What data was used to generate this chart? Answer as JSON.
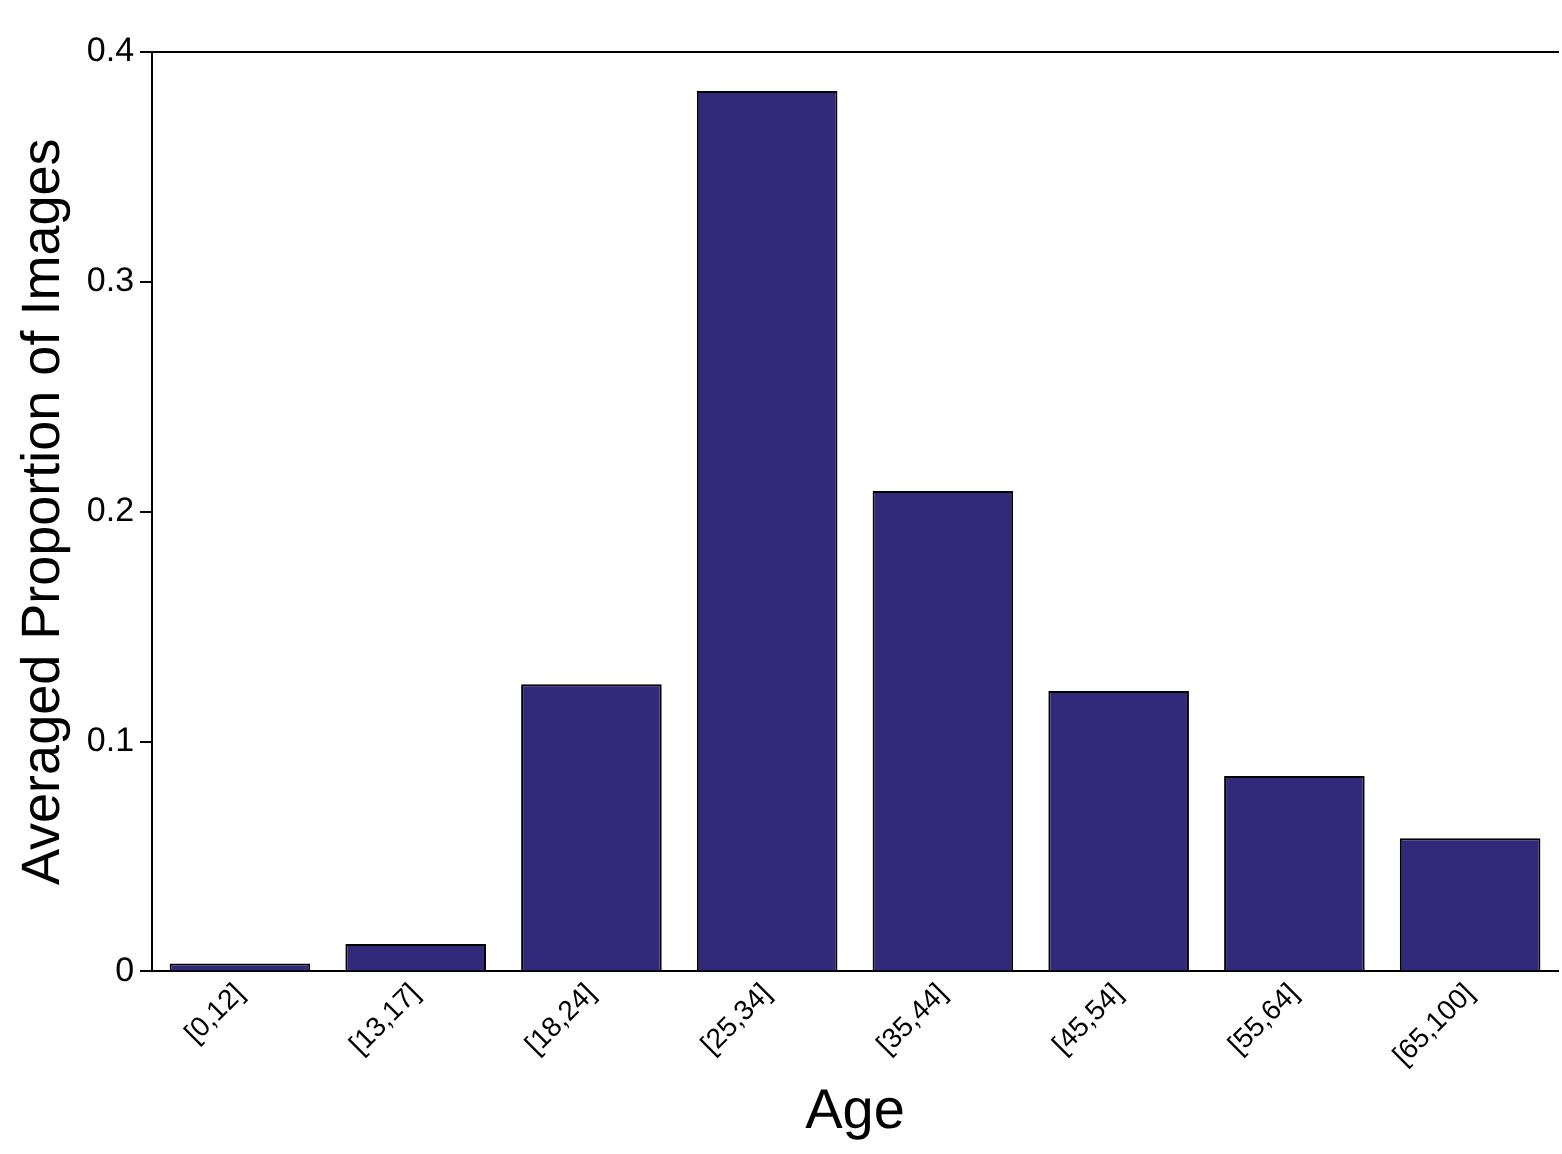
{
  "chart_data": {
    "type": "bar",
    "xlabel": "Age",
    "ylabel": "Averaged Proportion of Images",
    "categories": [
      "[0,12]",
      "[13,17]",
      "[18,24]",
      "[25,34]",
      "[35,44]",
      "[45,54]",
      "[55,64]",
      "[65,100]"
    ],
    "values": [
      0.0035,
      0.012,
      0.125,
      0.383,
      0.209,
      0.122,
      0.085,
      0.058
    ],
    "color": "#312a7a",
    "ylim": [
      0,
      0.4
    ],
    "yticks": [
      0,
      0.1,
      0.2,
      0.3,
      0.4
    ],
    "grid": false,
    "legend": false
  }
}
